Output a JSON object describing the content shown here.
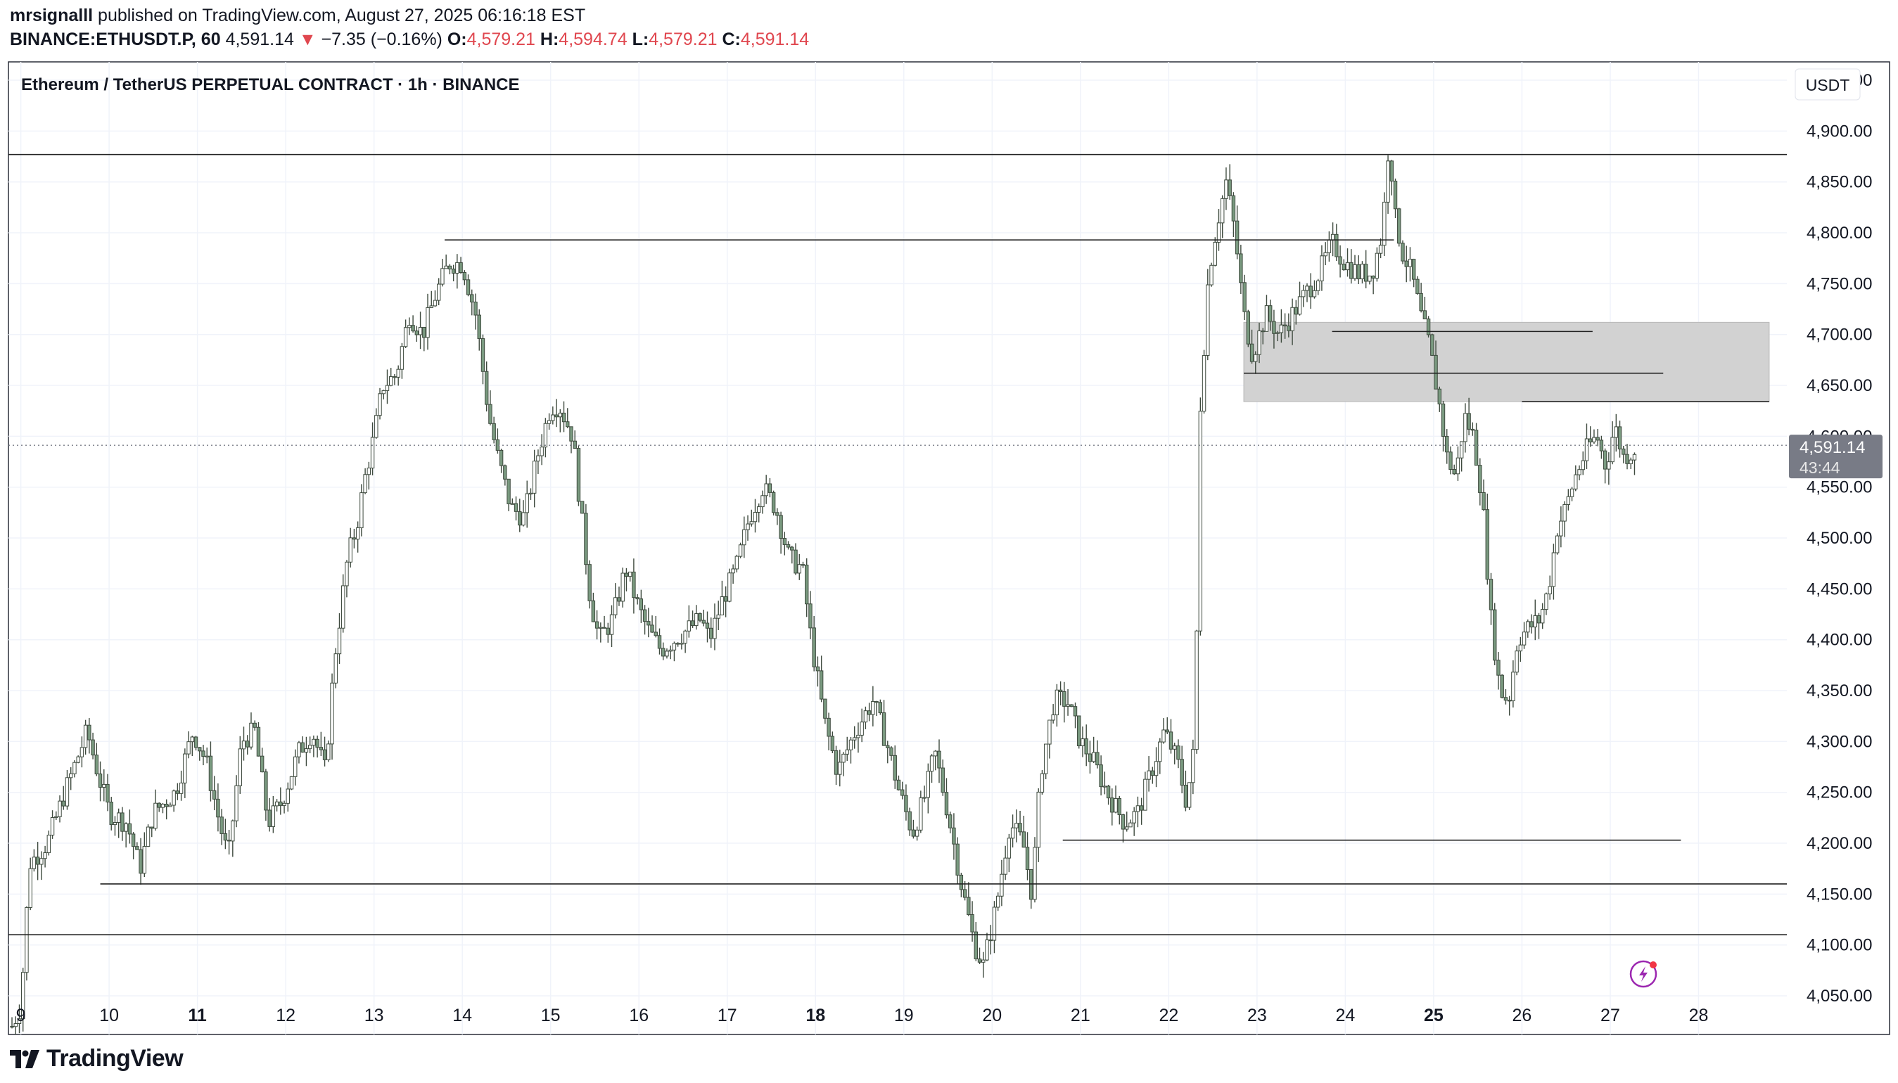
{
  "header": {
    "author": "mrsignalll",
    "published_text": "published on TradingView.com, August 27, 2025 06:16:18 EST",
    "symbol": "BINANCE:ETHUSDT.P, 60",
    "last": "4,591.14",
    "change": "−7.35 (−0.16%)",
    "o_label": "O:",
    "o": "4,579.21",
    "h_label": "H:",
    "h": "4,594.74",
    "l_label": "L:",
    "l": "4,579.21",
    "c_label": "C:",
    "c": "4,591.14"
  },
  "chart_data": {
    "type": "candlestick",
    "title": "Ethereum / TetherUS PERPETUAL CONTRACT · 1h · BINANCE",
    "currency": "USDT",
    "y_ticks": [
      4050,
      4100,
      4150,
      4200,
      4250,
      4300,
      4350,
      4400,
      4450,
      4500,
      4550,
      4600,
      4650,
      4700,
      4750,
      4800,
      4850,
      4900,
      4950
    ],
    "y_tick_labels": [
      "4,050.00",
      "4,100.00",
      "4,150.00",
      "4,200.00",
      "4,250.00",
      "4,300.00",
      "4,350.00",
      "4,400.00",
      "4,450.00",
      "4,500.00",
      "4,550.00",
      "4,600.00",
      "4,650.00",
      "4,700.00",
      "4,750.00",
      "4,800.00",
      "4,850.00",
      "4,900.00",
      "4,950.00"
    ],
    "ylim": [
      4012,
      4968
    ],
    "x_ticks": [
      {
        "day": 9,
        "label": "9",
        "bold": false
      },
      {
        "day": 10,
        "label": "10",
        "bold": false
      },
      {
        "day": 11,
        "label": "11",
        "bold": true
      },
      {
        "day": 12,
        "label": "12",
        "bold": false
      },
      {
        "day": 13,
        "label": "13",
        "bold": false
      },
      {
        "day": 14,
        "label": "14",
        "bold": false
      },
      {
        "day": 15,
        "label": "15",
        "bold": false
      },
      {
        "day": 16,
        "label": "16",
        "bold": false
      },
      {
        "day": 17,
        "label": "17",
        "bold": false
      },
      {
        "day": 18,
        "label": "18",
        "bold": true
      },
      {
        "day": 19,
        "label": "19",
        "bold": false
      },
      {
        "day": 20,
        "label": "20",
        "bold": false
      },
      {
        "day": 21,
        "label": "21",
        "bold": false
      },
      {
        "day": 22,
        "label": "22",
        "bold": false
      },
      {
        "day": 23,
        "label": "23",
        "bold": false
      },
      {
        "day": 24,
        "label": "24",
        "bold": false
      },
      {
        "day": 25,
        "label": "25",
        "bold": true
      },
      {
        "day": 26,
        "label": "26",
        "bold": false
      },
      {
        "day": 27,
        "label": "27",
        "bold": false
      },
      {
        "day": 28,
        "label": "28",
        "bold": false
      }
    ],
    "xlim": [
      8.86,
      29.0
    ],
    "series_close_path": [
      {
        "day": 8.9,
        "price": 4020
      },
      {
        "day": 9.0,
        "price": 4040
      },
      {
        "day": 9.05,
        "price": 4110
      },
      {
        "day": 9.1,
        "price": 4180
      },
      {
        "day": 9.3,
        "price": 4200
      },
      {
        "day": 9.5,
        "price": 4250
      },
      {
        "day": 9.75,
        "price": 4310
      },
      {
        "day": 9.9,
        "price": 4260
      },
      {
        "day": 10.0,
        "price": 4230
      },
      {
        "day": 10.2,
        "price": 4220
      },
      {
        "day": 10.35,
        "price": 4175
      },
      {
        "day": 10.5,
        "price": 4230
      },
      {
        "day": 10.75,
        "price": 4250
      },
      {
        "day": 10.95,
        "price": 4310
      },
      {
        "day": 11.1,
        "price": 4280
      },
      {
        "day": 11.25,
        "price": 4220
      },
      {
        "day": 11.35,
        "price": 4185
      },
      {
        "day": 11.5,
        "price": 4300
      },
      {
        "day": 11.65,
        "price": 4310
      },
      {
        "day": 11.8,
        "price": 4220
      },
      {
        "day": 11.95,
        "price": 4240
      },
      {
        "day": 12.15,
        "price": 4290
      },
      {
        "day": 12.3,
        "price": 4310
      },
      {
        "day": 12.45,
        "price": 4270
      },
      {
        "day": 12.55,
        "price": 4380
      },
      {
        "day": 12.7,
        "price": 4480
      },
      {
        "day": 12.8,
        "price": 4510
      },
      {
        "day": 12.9,
        "price": 4560
      },
      {
        "day": 13.0,
        "price": 4600
      },
      {
        "day": 13.1,
        "price": 4650
      },
      {
        "day": 13.25,
        "price": 4660
      },
      {
        "day": 13.4,
        "price": 4720
      },
      {
        "day": 13.55,
        "price": 4700
      },
      {
        "day": 13.7,
        "price": 4740
      },
      {
        "day": 13.85,
        "price": 4770
      },
      {
        "day": 14.0,
        "price": 4770
      },
      {
        "day": 14.15,
        "price": 4720
      },
      {
        "day": 14.3,
        "price": 4620
      },
      {
        "day": 14.4,
        "price": 4580
      },
      {
        "day": 14.55,
        "price": 4530
      },
      {
        "day": 14.7,
        "price": 4520
      },
      {
        "day": 14.85,
        "price": 4580
      },
      {
        "day": 15.0,
        "price": 4630
      },
      {
        "day": 15.1,
        "price": 4630
      },
      {
        "day": 15.25,
        "price": 4600
      },
      {
        "day": 15.35,
        "price": 4520
      },
      {
        "day": 15.45,
        "price": 4440
      },
      {
        "day": 15.55,
        "price": 4400
      },
      {
        "day": 15.7,
        "price": 4420
      },
      {
        "day": 15.85,
        "price": 4470
      },
      {
        "day": 16.0,
        "price": 4430
      },
      {
        "day": 16.1,
        "price": 4410
      },
      {
        "day": 16.25,
        "price": 4390
      },
      {
        "day": 16.4,
        "price": 4400
      },
      {
        "day": 16.55,
        "price": 4410
      },
      {
        "day": 16.7,
        "price": 4420
      },
      {
        "day": 16.8,
        "price": 4400
      },
      {
        "day": 16.95,
        "price": 4440
      },
      {
        "day": 17.1,
        "price": 4470
      },
      {
        "day": 17.25,
        "price": 4520
      },
      {
        "day": 17.4,
        "price": 4550
      },
      {
        "day": 17.55,
        "price": 4530
      },
      {
        "day": 17.7,
        "price": 4480
      },
      {
        "day": 17.85,
        "price": 4470
      },
      {
        "day": 17.95,
        "price": 4400
      },
      {
        "day": 18.1,
        "price": 4320
      },
      {
        "day": 18.25,
        "price": 4270
      },
      {
        "day": 18.45,
        "price": 4310
      },
      {
        "day": 18.65,
        "price": 4340
      },
      {
        "day": 18.8,
        "price": 4300
      },
      {
        "day": 18.95,
        "price": 4250
      },
      {
        "day": 19.1,
        "price": 4210
      },
      {
        "day": 19.25,
        "price": 4250
      },
      {
        "day": 19.35,
        "price": 4290
      },
      {
        "day": 19.5,
        "price": 4230
      },
      {
        "day": 19.65,
        "price": 4160
      },
      {
        "day": 19.8,
        "price": 4100
      },
      {
        "day": 19.9,
        "price": 4080
      },
      {
        "day": 20.05,
        "price": 4140
      },
      {
        "day": 20.2,
        "price": 4220
      },
      {
        "day": 20.35,
        "price": 4200
      },
      {
        "day": 20.45,
        "price": 4150
      },
      {
        "day": 20.55,
        "price": 4270
      },
      {
        "day": 20.7,
        "price": 4340
      },
      {
        "day": 20.85,
        "price": 4340
      },
      {
        "day": 21.0,
        "price": 4300
      },
      {
        "day": 21.15,
        "price": 4280
      },
      {
        "day": 21.3,
        "price": 4250
      },
      {
        "day": 21.5,
        "price": 4220
      },
      {
        "day": 21.65,
        "price": 4230
      },
      {
        "day": 21.8,
        "price": 4270
      },
      {
        "day": 21.95,
        "price": 4310
      },
      {
        "day": 22.1,
        "price": 4280
      },
      {
        "day": 22.2,
        "price": 4240
      },
      {
        "day": 22.3,
        "price": 4300
      },
      {
        "day": 22.35,
        "price": 4620
      },
      {
        "day": 22.45,
        "price": 4760
      },
      {
        "day": 22.55,
        "price": 4810
      },
      {
        "day": 22.65,
        "price": 4850
      },
      {
        "day": 22.75,
        "price": 4800
      },
      {
        "day": 22.85,
        "price": 4720
      },
      {
        "day": 22.95,
        "price": 4680
      },
      {
        "day": 23.1,
        "price": 4720
      },
      {
        "day": 23.25,
        "price": 4700
      },
      {
        "day": 23.4,
        "price": 4720
      },
      {
        "day": 23.55,
        "price": 4740
      },
      {
        "day": 23.7,
        "price": 4760
      },
      {
        "day": 23.85,
        "price": 4790
      },
      {
        "day": 24.0,
        "price": 4770
      },
      {
        "day": 24.15,
        "price": 4760
      },
      {
        "day": 24.3,
        "price": 4760
      },
      {
        "day": 24.42,
        "price": 4800
      },
      {
        "day": 24.5,
        "price": 4900
      },
      {
        "day": 24.55,
        "price": 4820
      },
      {
        "day": 24.65,
        "price": 4780
      },
      {
        "day": 24.75,
        "price": 4760
      },
      {
        "day": 24.85,
        "price": 4720
      },
      {
        "day": 24.95,
        "price": 4690
      },
      {
        "day": 25.05,
        "price": 4640
      },
      {
        "day": 25.15,
        "price": 4580
      },
      {
        "day": 25.25,
        "price": 4560
      },
      {
        "day": 25.35,
        "price": 4620
      },
      {
        "day": 25.45,
        "price": 4600
      },
      {
        "day": 25.55,
        "price": 4540
      },
      {
        "day": 25.65,
        "price": 4420
      },
      {
        "day": 25.75,
        "price": 4350
      },
      {
        "day": 25.85,
        "price": 4340
      },
      {
        "day": 25.95,
        "price": 4400
      },
      {
        "day": 26.05,
        "price": 4410
      },
      {
        "day": 26.2,
        "price": 4420
      },
      {
        "day": 26.3,
        "price": 4450
      },
      {
        "day": 26.4,
        "price": 4510
      },
      {
        "day": 26.5,
        "price": 4530
      },
      {
        "day": 26.6,
        "price": 4560
      },
      {
        "day": 26.75,
        "price": 4590
      },
      {
        "day": 26.85,
        "price": 4600
      },
      {
        "day": 26.95,
        "price": 4570
      },
      {
        "day": 27.05,
        "price": 4610
      },
      {
        "day": 27.15,
        "price": 4580
      },
      {
        "day": 27.25,
        "price": 4585
      },
      {
        "day": 27.3,
        "price": 4591.14
      }
    ],
    "horizontal_lines": [
      {
        "price": 4877,
        "from_day": 8.86,
        "to_day": 29.0
      },
      {
        "price": 4793,
        "from_day": 13.8,
        "to_day": 24.55
      },
      {
        "price": 4703,
        "from_day": 23.85,
        "to_day": 26.8
      },
      {
        "price": 4662,
        "from_day": 22.85,
        "to_day": 27.6
      },
      {
        "price": 4634,
        "from_day": 26.0,
        "to_day": 28.8
      },
      {
        "price": 4203,
        "from_day": 20.8,
        "to_day": 27.8
      },
      {
        "price": 4160,
        "from_day": 9.9,
        "to_day": 29.0
      },
      {
        "price": 4110,
        "from_day": 8.86,
        "to_day": 29.0
      }
    ],
    "zone": {
      "top": 4712,
      "bottom": 4634,
      "from_day": 22.85,
      "to_day": 28.8
    },
    "last_price_label": "4,591.14",
    "last_price": 4591.14,
    "countdown": "43:44",
    "colors": {
      "candle": "#3e4a3e",
      "body": "#7a9a80",
      "line": "#222222",
      "zone": "#d2d2d2",
      "grid": "#f0f3fa",
      "price_tag": "#787b86"
    }
  },
  "brand": {
    "name": "TradingView"
  }
}
